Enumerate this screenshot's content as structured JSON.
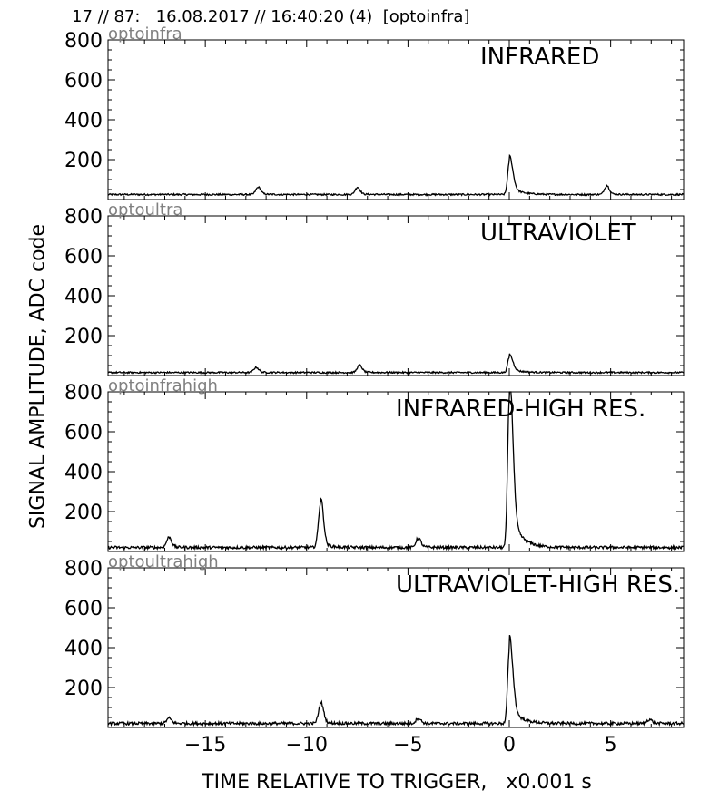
{
  "header": "17 // 87:   16.08.2017 // 16:40:20 (4)  [optoinfra]",
  "ylabel": "SIGNAL AMPLITUDE,  ADC code",
  "xlabel": "TIME RELATIVE TO TRIGGER,   x0.001 s",
  "colors": {
    "line": "#000000",
    "source": "#808080"
  },
  "chart_data": [
    {
      "type": "line",
      "source": "optoinfra",
      "title": "INFRARED",
      "xlim": [
        -19.8,
        8.6
      ],
      "ylim": [
        0,
        800
      ],
      "xticks": [
        -15,
        -10,
        -5,
        0,
        5
      ],
      "xticklabels": [
        "",
        "",
        "",
        "",
        ""
      ],
      "yticks": [
        200,
        400,
        600,
        800
      ],
      "baseline": 25,
      "peaks": [
        {
          "x": -12.4,
          "y": 60
        },
        {
          "x": -7.5,
          "y": 60
        },
        {
          "x": 0.0,
          "y": 185
        },
        {
          "x": 4.8,
          "y": 68
        }
      ]
    },
    {
      "type": "line",
      "source": "optoultra",
      "title": "ULTRAVIOLET",
      "xlim": [
        -19.8,
        8.6
      ],
      "ylim": [
        0,
        800
      ],
      "xticks": [
        -15,
        -10,
        -5,
        0,
        5
      ],
      "xticklabels": [
        "",
        "",
        "",
        "",
        ""
      ],
      "yticks": [
        200,
        400,
        600,
        800
      ],
      "baseline": 15,
      "peaks": [
        {
          "x": -12.5,
          "y": 40
        },
        {
          "x": -7.4,
          "y": 50
        },
        {
          "x": 0.0,
          "y": 90
        }
      ]
    },
    {
      "type": "line",
      "source": "optoinfrahigh",
      "title": "INFRARED-HIGH RES.",
      "xlim": [
        -19.8,
        8.6
      ],
      "ylim": [
        0,
        800
      ],
      "xticks": [
        -15,
        -10,
        -5,
        0,
        5
      ],
      "xticklabels": [
        "",
        "",
        "",
        "",
        ""
      ],
      "yticks": [
        200,
        400,
        600,
        800
      ],
      "baseline": 20,
      "peaks": [
        {
          "x": -16.8,
          "y": 70
        },
        {
          "x": -9.3,
          "y": 250
        },
        {
          "x": -4.5,
          "y": 65
        },
        {
          "x": 0.0,
          "y": 760
        }
      ]
    },
    {
      "type": "line",
      "source": "optoultrahigh",
      "title": "ULTRAVIOLET-HIGH RES.",
      "xlim": [
        -19.8,
        8.6
      ],
      "ylim": [
        0,
        800
      ],
      "xticks": [
        -15,
        -10,
        -5,
        0,
        5
      ],
      "xticklabels": [
        "−15",
        "−10",
        "−5",
        "0",
        "5"
      ],
      "yticks": [
        200,
        400,
        600,
        800
      ],
      "baseline": 20,
      "peaks": [
        {
          "x": -16.8,
          "y": 45
        },
        {
          "x": -9.3,
          "y": 120
        },
        {
          "x": -4.5,
          "y": 45
        },
        {
          "x": 0.0,
          "y": 380
        },
        {
          "x": 6.9,
          "y": 40
        }
      ]
    }
  ]
}
